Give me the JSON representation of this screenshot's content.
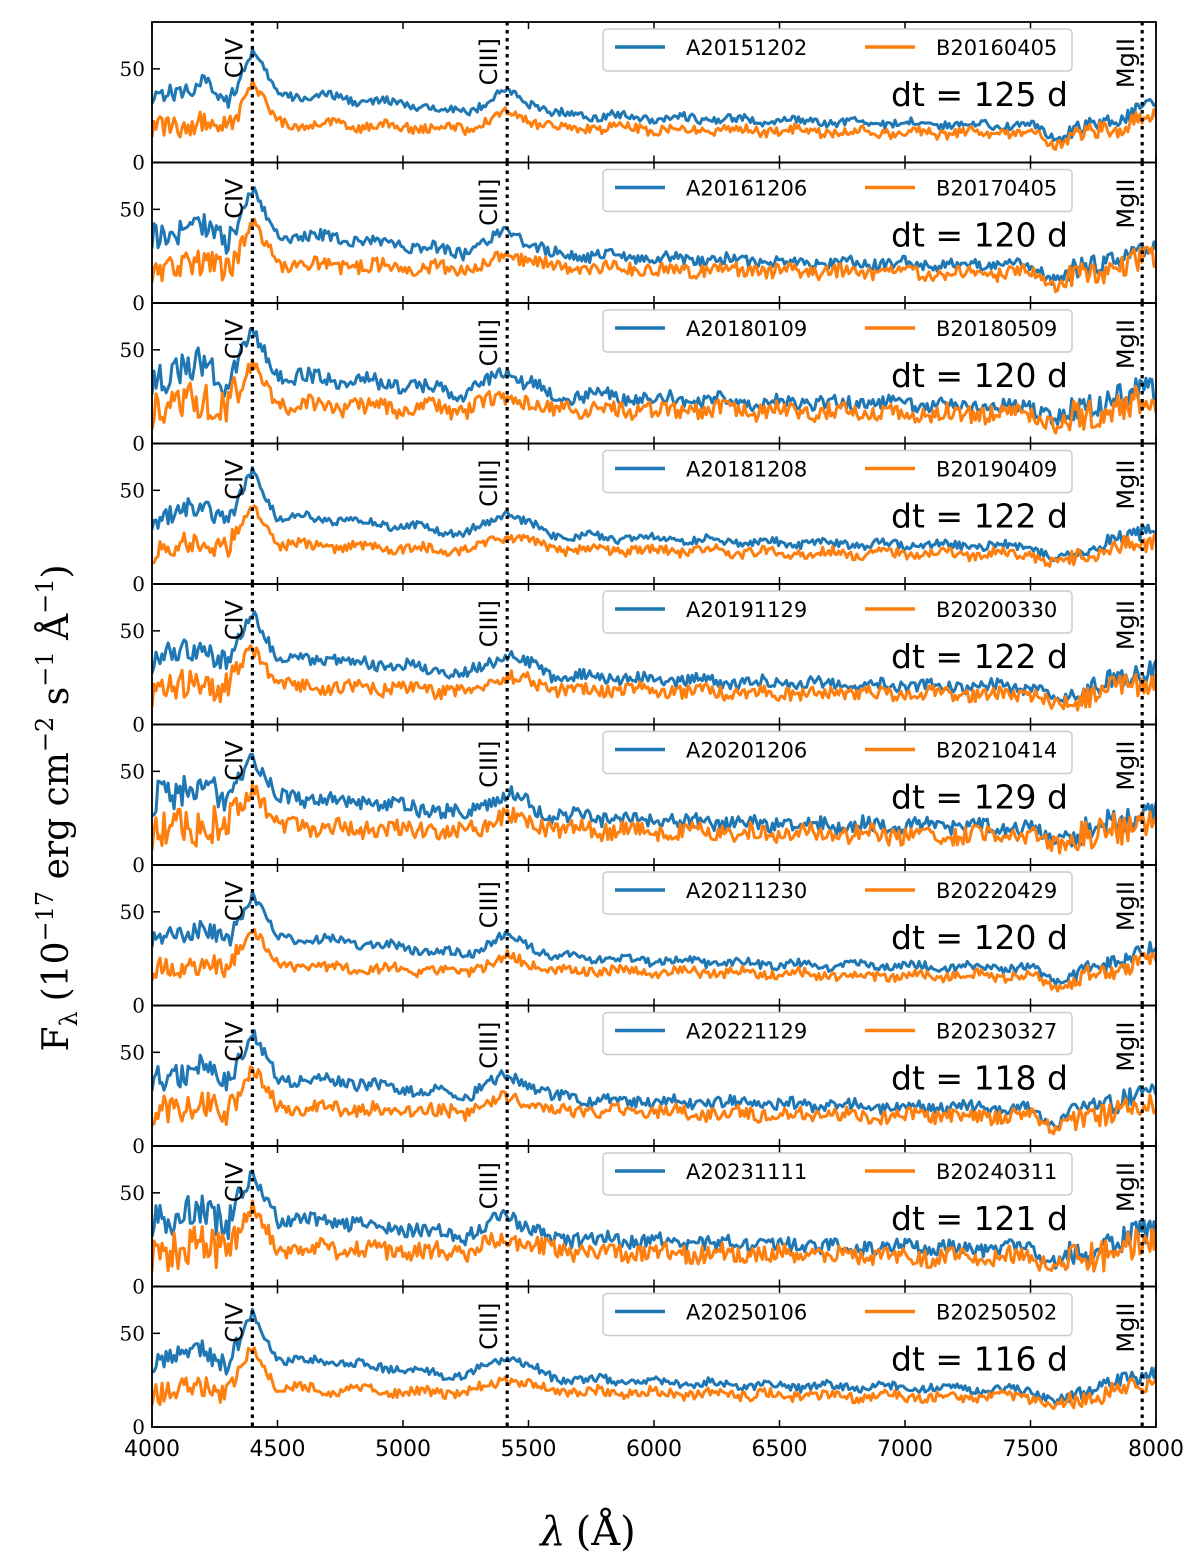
{
  "chart_data": {
    "type": "line",
    "xlabel_symbol": "λ",
    "xlabel_unit": "(Å)",
    "ylabel": "F",
    "ylabel_sub": "λ",
    "ylabel_unit_pre": "(10",
    "ylabel_exp1": "−17",
    "ylabel_unit_mid": " erg cm",
    "ylabel_exp2": "−2",
    "ylabel_unit_s": " s",
    "ylabel_exp3": "−1",
    "ylabel_unit_A": " Å",
    "ylabel_exp4": "−1",
    "ylabel_close": ")",
    "xlim": [
      4000,
      8000
    ],
    "ylim": [
      0,
      75
    ],
    "xticks": [
      4000,
      4500,
      5000,
      5500,
      6000,
      6500,
      7000,
      7500,
      8000
    ],
    "xtick_labels": [
      "4000",
      "4500",
      "5000",
      "5500",
      "6000",
      "6500",
      "7000",
      "7500",
      "8000"
    ],
    "yticks": [
      0,
      50
    ],
    "ytick_labels": [
      "0",
      "50"
    ],
    "line_markers": [
      {
        "name": "CIV",
        "wavelength": 4400
      },
      {
        "name": "CIII]",
        "wavelength": 5415
      },
      {
        "name": "MgII",
        "wavelength": 7945
      }
    ],
    "series_colors": {
      "A": "#1f77b4",
      "B": "#ff7f0e"
    },
    "panels": [
      {
        "a_label": "A20151202",
        "b_label": "B20160405",
        "dt_label": "dt = 125 d"
      },
      {
        "a_label": "A20161206",
        "b_label": "B20170405",
        "dt_label": "dt = 120 d"
      },
      {
        "a_label": "A20180109",
        "b_label": "B20180509",
        "dt_label": "dt = 120 d"
      },
      {
        "a_label": "A20181208",
        "b_label": "B20190409",
        "dt_label": "dt = 122 d"
      },
      {
        "a_label": "A20191129",
        "b_label": "B20200330",
        "dt_label": "dt = 122 d"
      },
      {
        "a_label": "A20201206",
        "b_label": "B20210414",
        "dt_label": "dt = 129 d"
      },
      {
        "a_label": "A20211230",
        "b_label": "B20220429",
        "dt_label": "dt = 120 d"
      },
      {
        "a_label": "A20221129",
        "b_label": "B20230327",
        "dt_label": "dt = 118 d"
      },
      {
        "a_label": "A20231111",
        "b_label": "B20240311",
        "dt_label": "dt = 121 d"
      },
      {
        "a_label": "A20250106",
        "b_label": "B20250502",
        "dt_label": "dt = 116 d"
      }
    ],
    "spectra_profile": {
      "A": [
        [
          4000,
          35
        ],
        [
          4100,
          38
        ],
        [
          4200,
          42
        ],
        [
          4300,
          33
        ],
        [
          4400,
          60
        ],
        [
          4500,
          36
        ],
        [
          4700,
          35
        ],
        [
          5000,
          31
        ],
        [
          5250,
          27
        ],
        [
          5415,
          38
        ],
        [
          5600,
          26
        ],
        [
          6000,
          24
        ],
        [
          6500,
          22
        ],
        [
          7000,
          21
        ],
        [
          7500,
          20
        ],
        [
          7600,
          13
        ],
        [
          7700,
          18
        ],
        [
          8000,
          30
        ]
      ],
      "B": [
        [
          4000,
          18
        ],
        [
          4100,
          20
        ],
        [
          4200,
          22
        ],
        [
          4300,
          19
        ],
        [
          4400,
          42
        ],
        [
          4500,
          21
        ],
        [
          4700,
          20
        ],
        [
          5000,
          19
        ],
        [
          5250,
          18
        ],
        [
          5415,
          26
        ],
        [
          5600,
          19
        ],
        [
          6000,
          18
        ],
        [
          6500,
          17
        ],
        [
          7000,
          16
        ],
        [
          7500,
          16
        ],
        [
          7600,
          10
        ],
        [
          7700,
          15
        ],
        [
          8000,
          24
        ]
      ]
    }
  }
}
